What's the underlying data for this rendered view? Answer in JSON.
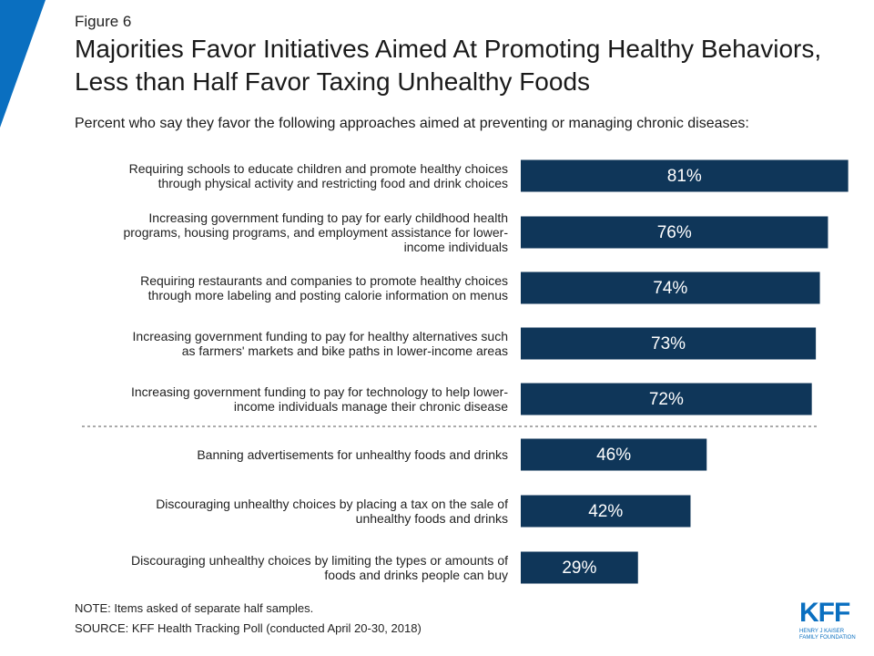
{
  "chart_data": {
    "type": "bar",
    "orientation": "horizontal",
    "figure_label": "Figure 6",
    "title": "Majorities Favor Initiatives Aimed At Promoting Healthy Behaviors, Less than Half Favor Taxing Unhealthy Foods",
    "subtitle": "Percent who say they favor the following approaches aimed at preventing or managing chronic diseases:",
    "categories": [
      "Requiring schools to educate children and promote healthy choices\nthrough physical activity and restricting food and drink choices",
      "Increasing government funding to pay for early childhood health\nprograms, housing programs, and employment assistance for lower-\nincome individuals",
      "Requiring restaurants and companies to promote healthy choices\nthrough more labeling and posting calorie information on menus",
      "Increasing government funding to pay for healthy alternatives such\nas farmers' markets and bike paths in lower-income areas",
      "Increasing government funding to pay for technology to help lower-\nincome individuals manage their chronic disease",
      "Banning advertisements for unhealthy foods and drinks",
      "Discouraging unhealthy choices by placing a tax on the sale of\nunhealthy foods and drinks",
      "Discouraging unhealthy choices by limiting the types or amounts of\nfoods and drinks people can buy"
    ],
    "values": [
      81,
      76,
      74,
      73,
      72,
      46,
      42,
      29
    ],
    "value_labels": [
      "81%",
      "76%",
      "74%",
      "73%",
      "72%",
      "46%",
      "42%",
      "29%"
    ],
    "color": "#0f3659",
    "xlim": [
      0,
      100
    ],
    "note": "NOTE: Items asked of separate half samples.",
    "source": "SOURCE: KFF Health Tracking Poll (conducted April 20-30, 2018)",
    "logo": "KFF",
    "logo_subtext": "HENRY J KAISER\nFAMILY FOUNDATION"
  }
}
